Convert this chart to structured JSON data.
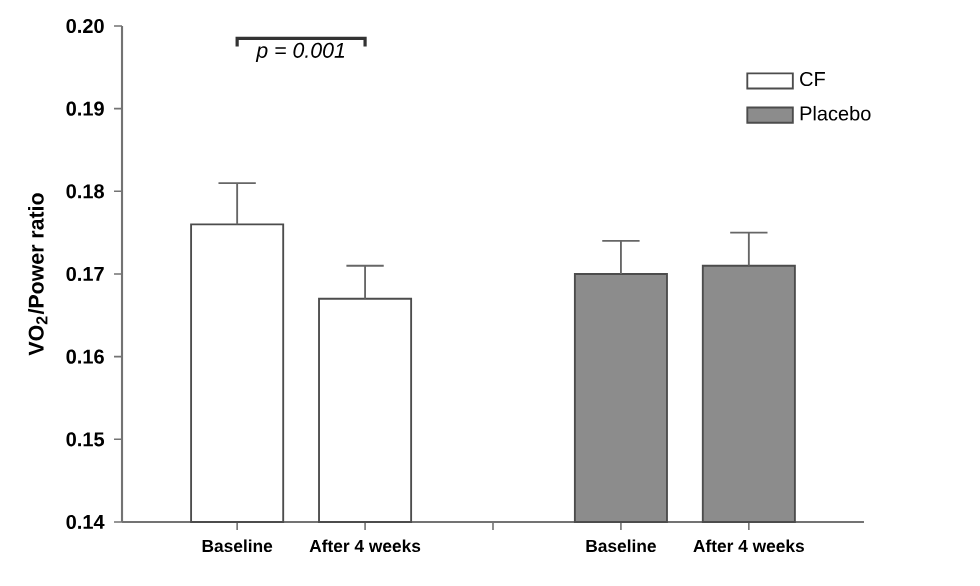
{
  "chart_data": {
    "type": "bar",
    "ylabel": "VO$_{2}$/Power ratio",
    "categories": [
      "Baseline",
      "After 4 weeks",
      null,
      "Baseline",
      "After 4 weeks"
    ],
    "series": [
      {
        "name": "CF",
        "color": "#ffffff",
        "values": [
          0.176,
          0.167,
          null,
          null,
          null
        ],
        "errors": [
          [
            0.176,
            0.181
          ],
          [
            0.167,
            0.171
          ],
          null,
          null,
          null
        ]
      },
      {
        "name": "Placebo",
        "color": "#8c8c8c",
        "values": [
          null,
          null,
          null,
          0.17,
          0.171
        ],
        "errors": [
          null,
          null,
          null,
          [
            0.17,
            0.174
          ],
          [
            0.171,
            0.175
          ]
        ]
      }
    ],
    "ylim": [
      0.14,
      0.2
    ],
    "yticks": [
      0.14,
      0.15,
      0.16,
      0.17,
      0.18,
      0.19,
      {
        "value": 0.2,
        "label": "0.20"
      }
    ],
    "legend": "top right",
    "annotations": [
      "*p* = 0.001"
    ]
  }
}
